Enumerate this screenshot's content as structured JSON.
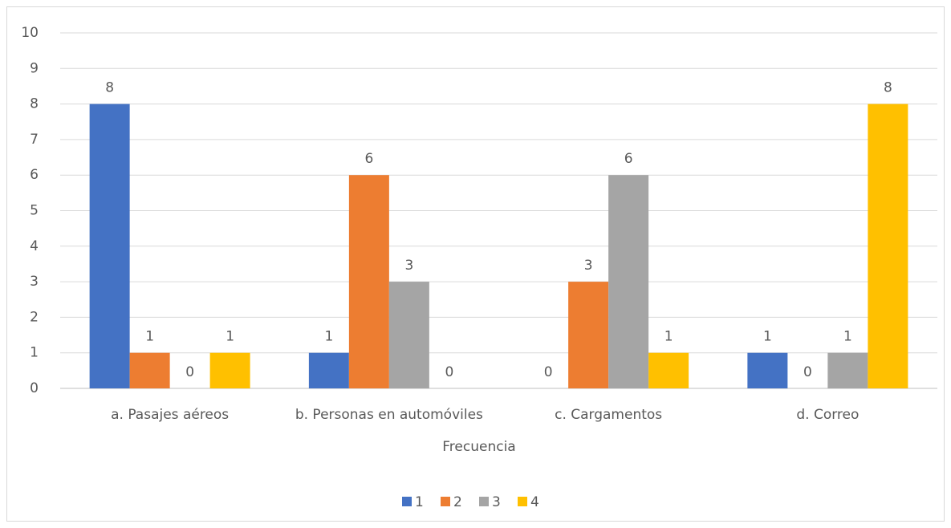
{
  "chart_data": {
    "type": "bar",
    "x_label": "Frecuencia",
    "categories": [
      "a. Pasajes aéreos",
      "b. Personas en automóviles",
      "c. Cargamentos",
      "d. Correo"
    ],
    "series": [
      {
        "name": "1",
        "color": "#4472c4",
        "values": [
          8,
          1,
          0,
          1
        ]
      },
      {
        "name": "2",
        "color": "#ed7d31",
        "values": [
          1,
          6,
          3,
          0
        ]
      },
      {
        "name": "3",
        "color": "#a5a5a5",
        "values": [
          0,
          3,
          6,
          1
        ]
      },
      {
        "name": "4",
        "color": "#ffc000",
        "values": [
          1,
          0,
          1,
          8
        ]
      }
    ],
    "ylim": [
      0,
      10
    ],
    "yticks": [
      0,
      1,
      2,
      3,
      4,
      5,
      6,
      7,
      8,
      9,
      10
    ],
    "grid": true,
    "legend": "bottom"
  }
}
